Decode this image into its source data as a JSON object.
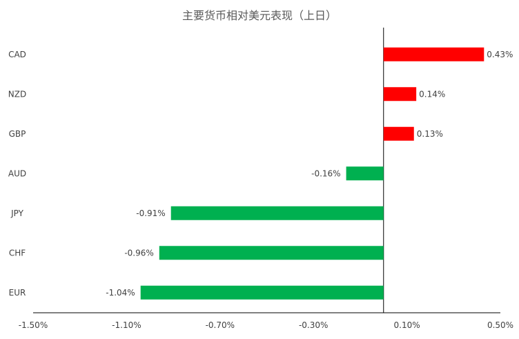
{
  "chart_data": {
    "type": "bar",
    "orientation": "horizontal",
    "title": "主要货币相对美元表现（上日）",
    "categories": [
      "CAD",
      "NZD",
      "GBP",
      "AUD",
      "JPY",
      "CHF",
      "EUR"
    ],
    "values": [
      0.43,
      0.14,
      0.13,
      -0.16,
      -0.91,
      -0.96,
      -1.04
    ],
    "data_labels": [
      "0.43%",
      "0.14%",
      "0.13%",
      "-0.16%",
      "-0.91%",
      "-0.96%",
      "-1.04%"
    ],
    "xlim": [
      -1.5,
      0.5
    ],
    "xticks": [
      -1.5,
      -1.1,
      -0.7,
      -0.3,
      0.1,
      0.5
    ],
    "xtick_labels": [
      "-1.50%",
      "-1.10%",
      "-0.70%",
      "-0.30%",
      "0.10%",
      "0.50%"
    ],
    "colors": {
      "positive": "#ff0000",
      "negative": "#00b050",
      "axis": "#000000"
    },
    "grid": false,
    "legend": "none"
  }
}
